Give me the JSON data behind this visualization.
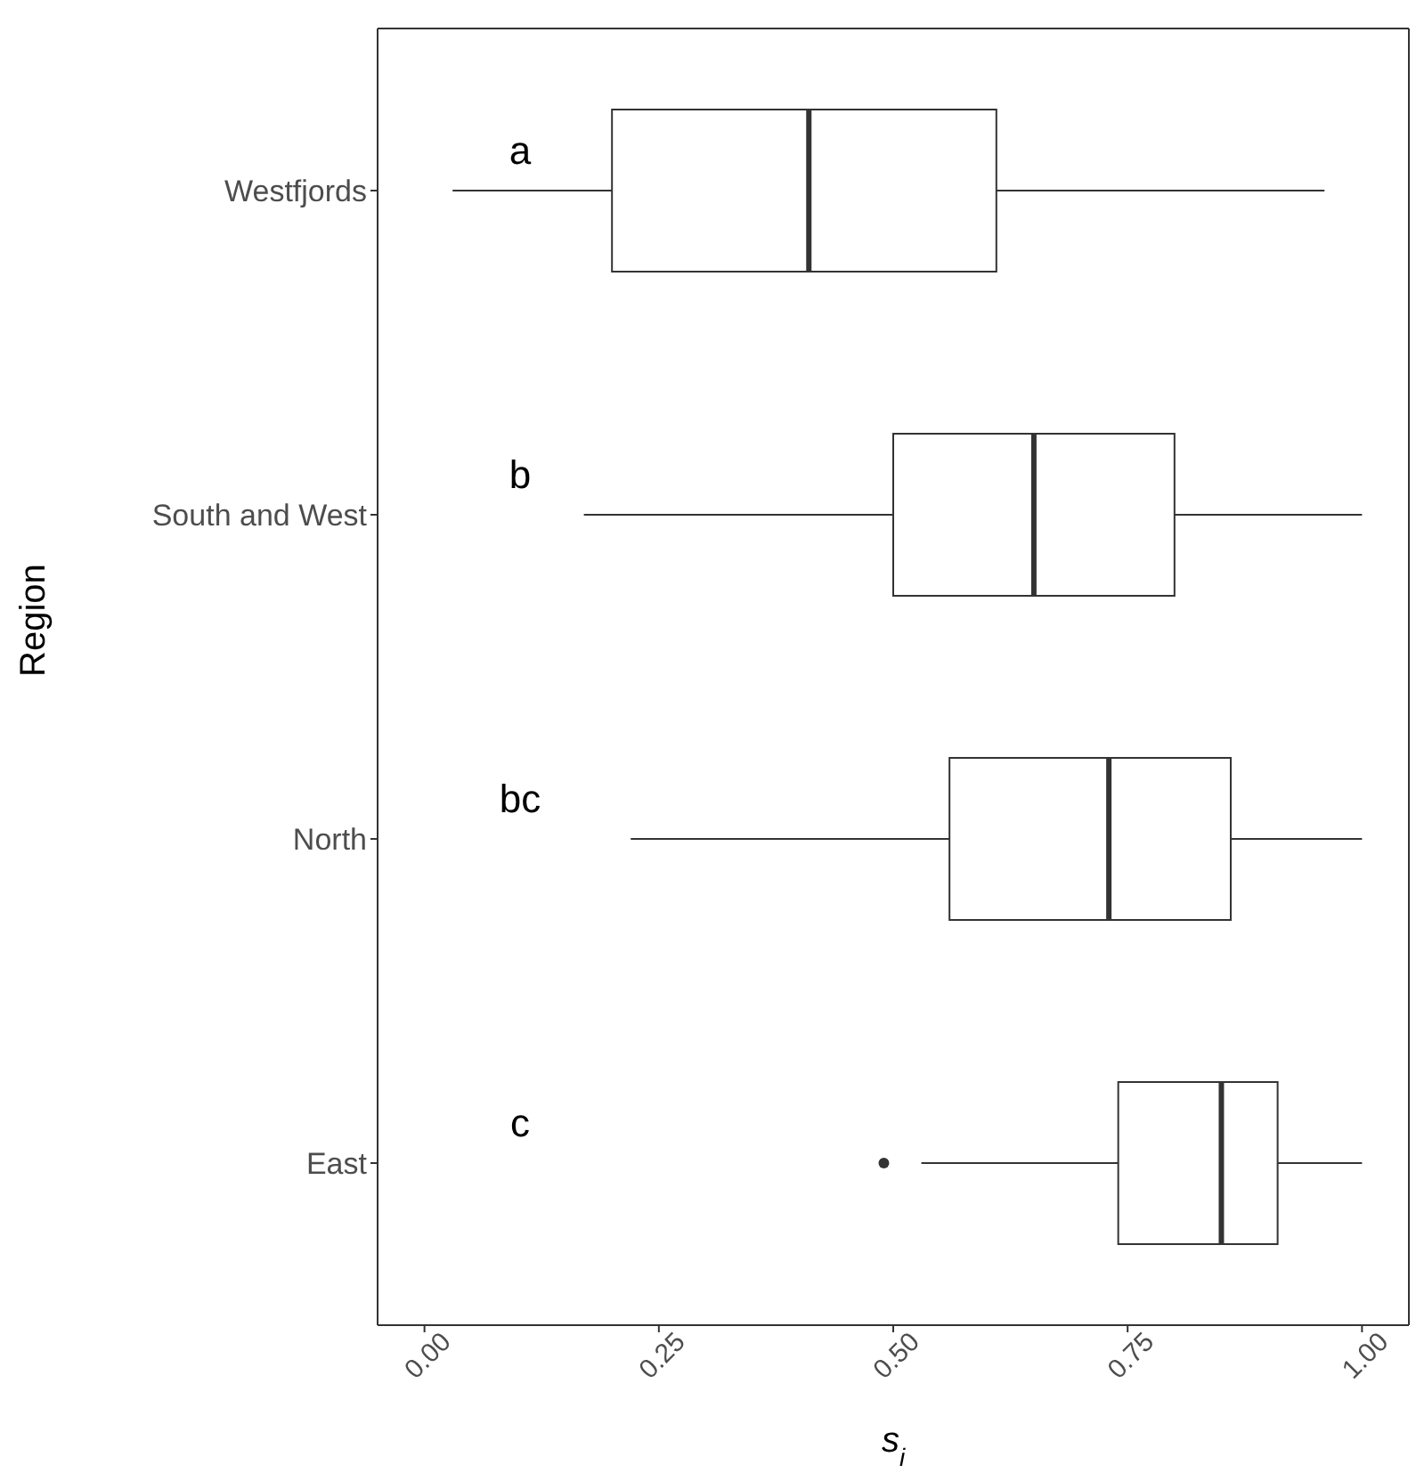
{
  "chart_data": {
    "type": "box",
    "orientation": "horizontal",
    "xlabel": "s$_{i}$",
    "ylabel": "Region",
    "categories": [
      "Westfjords",
      "South and West",
      "North",
      "East"
    ],
    "boxes": [
      {
        "low": 0.03,
        "q1": 0.2,
        "median": 0.41,
        "q3": 0.61,
        "high": 0.96
      },
      {
        "low": 0.17,
        "q1": 0.5,
        "median": 0.65,
        "q3": 0.8,
        "high": 1.0
      },
      {
        "low": 0.22,
        "q1": 0.56,
        "median": 0.73,
        "q3": 0.86,
        "high": 1.0
      },
      {
        "low": 0.53,
        "q1": 0.74,
        "median": 0.85,
        "q3": 0.91,
        "high": 1.0,
        "outliers": [
          0.49
        ]
      }
    ],
    "color": "#333333",
    "xlim": [
      -0.05,
      1.05
    ],
    "xticks": [
      {
        "value": 0,
        "label": "0.00"
      },
      {
        "value": 0.25,
        "label": "0.25"
      },
      {
        "value": 0.5,
        "label": "0.50"
      },
      {
        "value": 0.75,
        "label": "0.75"
      },
      {
        "value": 1,
        "label": "1.00"
      }
    ],
    "annotations": [
      "a",
      "b",
      "bc",
      "c"
    ]
  }
}
